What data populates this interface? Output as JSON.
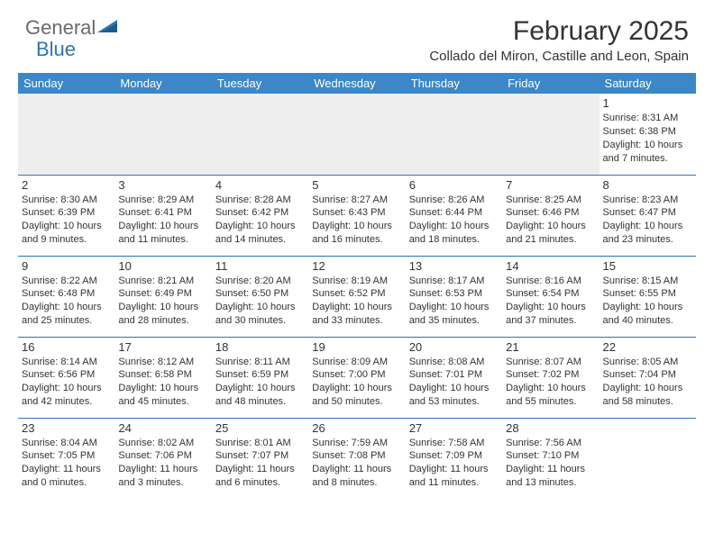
{
  "logo": {
    "text1": "General",
    "text2": "Blue"
  },
  "title": "February 2025",
  "location": "Collado del Miron, Castille and Leon, Spain",
  "colors": {
    "header_bg": "#3c87c7",
    "header_text": "#ffffff",
    "border": "#2f74b5",
    "empty_bg": "#eeeeee",
    "body_text": "#333333",
    "logo_gray": "#6a6a6a",
    "logo_blue": "#2f74b5"
  },
  "fonts": {
    "title_size": 30,
    "location_size": 15,
    "header_size": 13,
    "daynum_size": 13,
    "daytext_size": 11
  },
  "weekdayHeaders": [
    "Sunday",
    "Monday",
    "Tuesday",
    "Wednesday",
    "Thursday",
    "Friday",
    "Saturday"
  ],
  "weeks": [
    [
      {
        "empty": true
      },
      {
        "empty": true
      },
      {
        "empty": true
      },
      {
        "empty": true
      },
      {
        "empty": true
      },
      {
        "empty": true
      },
      {
        "day": "1",
        "sunrise": "Sunrise: 8:31 AM",
        "sunset": "Sunset: 6:38 PM",
        "daylight": "Daylight: 10 hours and 7 minutes."
      }
    ],
    [
      {
        "day": "2",
        "sunrise": "Sunrise: 8:30 AM",
        "sunset": "Sunset: 6:39 PM",
        "daylight": "Daylight: 10 hours and 9 minutes."
      },
      {
        "day": "3",
        "sunrise": "Sunrise: 8:29 AM",
        "sunset": "Sunset: 6:41 PM",
        "daylight": "Daylight: 10 hours and 11 minutes."
      },
      {
        "day": "4",
        "sunrise": "Sunrise: 8:28 AM",
        "sunset": "Sunset: 6:42 PM",
        "daylight": "Daylight: 10 hours and 14 minutes."
      },
      {
        "day": "5",
        "sunrise": "Sunrise: 8:27 AM",
        "sunset": "Sunset: 6:43 PM",
        "daylight": "Daylight: 10 hours and 16 minutes."
      },
      {
        "day": "6",
        "sunrise": "Sunrise: 8:26 AM",
        "sunset": "Sunset: 6:44 PM",
        "daylight": "Daylight: 10 hours and 18 minutes."
      },
      {
        "day": "7",
        "sunrise": "Sunrise: 8:25 AM",
        "sunset": "Sunset: 6:46 PM",
        "daylight": "Daylight: 10 hours and 21 minutes."
      },
      {
        "day": "8",
        "sunrise": "Sunrise: 8:23 AM",
        "sunset": "Sunset: 6:47 PM",
        "daylight": "Daylight: 10 hours and 23 minutes."
      }
    ],
    [
      {
        "day": "9",
        "sunrise": "Sunrise: 8:22 AM",
        "sunset": "Sunset: 6:48 PM",
        "daylight": "Daylight: 10 hours and 25 minutes."
      },
      {
        "day": "10",
        "sunrise": "Sunrise: 8:21 AM",
        "sunset": "Sunset: 6:49 PM",
        "daylight": "Daylight: 10 hours and 28 minutes."
      },
      {
        "day": "11",
        "sunrise": "Sunrise: 8:20 AM",
        "sunset": "Sunset: 6:50 PM",
        "daylight": "Daylight: 10 hours and 30 minutes."
      },
      {
        "day": "12",
        "sunrise": "Sunrise: 8:19 AM",
        "sunset": "Sunset: 6:52 PM",
        "daylight": "Daylight: 10 hours and 33 minutes."
      },
      {
        "day": "13",
        "sunrise": "Sunrise: 8:17 AM",
        "sunset": "Sunset: 6:53 PM",
        "daylight": "Daylight: 10 hours and 35 minutes."
      },
      {
        "day": "14",
        "sunrise": "Sunrise: 8:16 AM",
        "sunset": "Sunset: 6:54 PM",
        "daylight": "Daylight: 10 hours and 37 minutes."
      },
      {
        "day": "15",
        "sunrise": "Sunrise: 8:15 AM",
        "sunset": "Sunset: 6:55 PM",
        "daylight": "Daylight: 10 hours and 40 minutes."
      }
    ],
    [
      {
        "day": "16",
        "sunrise": "Sunrise: 8:14 AM",
        "sunset": "Sunset: 6:56 PM",
        "daylight": "Daylight: 10 hours and 42 minutes."
      },
      {
        "day": "17",
        "sunrise": "Sunrise: 8:12 AM",
        "sunset": "Sunset: 6:58 PM",
        "daylight": "Daylight: 10 hours and 45 minutes."
      },
      {
        "day": "18",
        "sunrise": "Sunrise: 8:11 AM",
        "sunset": "Sunset: 6:59 PM",
        "daylight": "Daylight: 10 hours and 48 minutes."
      },
      {
        "day": "19",
        "sunrise": "Sunrise: 8:09 AM",
        "sunset": "Sunset: 7:00 PM",
        "daylight": "Daylight: 10 hours and 50 minutes."
      },
      {
        "day": "20",
        "sunrise": "Sunrise: 8:08 AM",
        "sunset": "Sunset: 7:01 PM",
        "daylight": "Daylight: 10 hours and 53 minutes."
      },
      {
        "day": "21",
        "sunrise": "Sunrise: 8:07 AM",
        "sunset": "Sunset: 7:02 PM",
        "daylight": "Daylight: 10 hours and 55 minutes."
      },
      {
        "day": "22",
        "sunrise": "Sunrise: 8:05 AM",
        "sunset": "Sunset: 7:04 PM",
        "daylight": "Daylight: 10 hours and 58 minutes."
      }
    ],
    [
      {
        "day": "23",
        "sunrise": "Sunrise: 8:04 AM",
        "sunset": "Sunset: 7:05 PM",
        "daylight": "Daylight: 11 hours and 0 minutes."
      },
      {
        "day": "24",
        "sunrise": "Sunrise: 8:02 AM",
        "sunset": "Sunset: 7:06 PM",
        "daylight": "Daylight: 11 hours and 3 minutes."
      },
      {
        "day": "25",
        "sunrise": "Sunrise: 8:01 AM",
        "sunset": "Sunset: 7:07 PM",
        "daylight": "Daylight: 11 hours and 6 minutes."
      },
      {
        "day": "26",
        "sunrise": "Sunrise: 7:59 AM",
        "sunset": "Sunset: 7:08 PM",
        "daylight": "Daylight: 11 hours and 8 minutes."
      },
      {
        "day": "27",
        "sunrise": "Sunrise: 7:58 AM",
        "sunset": "Sunset: 7:09 PM",
        "daylight": "Daylight: 11 hours and 11 minutes."
      },
      {
        "day": "28",
        "sunrise": "Sunrise: 7:56 AM",
        "sunset": "Sunset: 7:10 PM",
        "daylight": "Daylight: 11 hours and 13 minutes."
      },
      {
        "empty": true
      }
    ]
  ]
}
